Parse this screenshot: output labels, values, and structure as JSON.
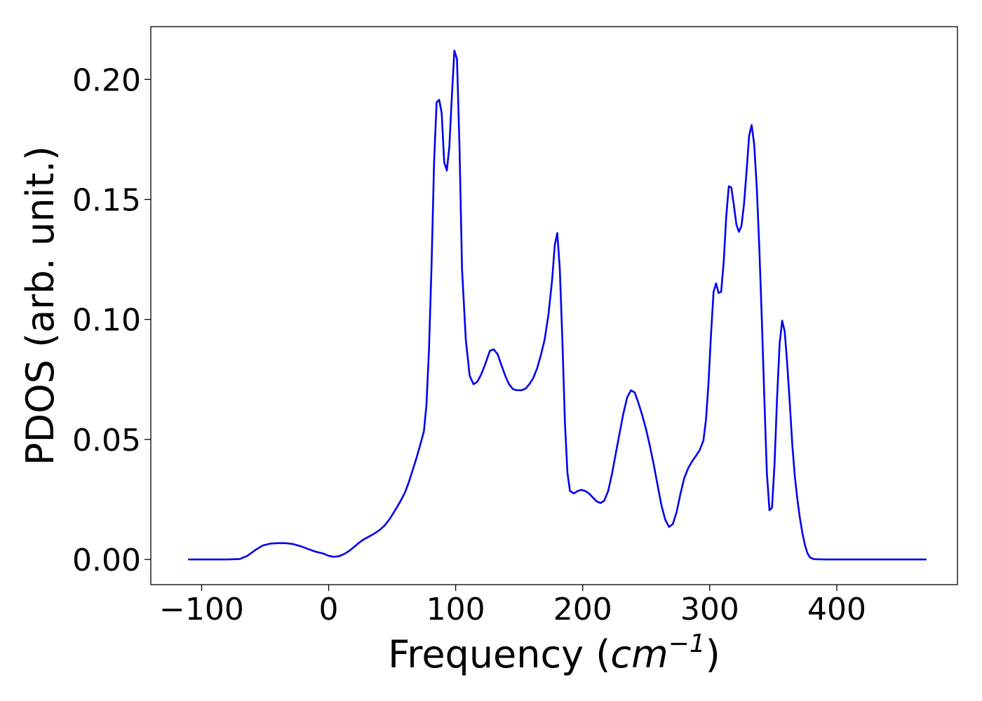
{
  "chart_data": {
    "type": "line",
    "title": "",
    "xlabel": "Frequency (",
    "xlabel_math": "cm",
    "xlabel_sup": "−1",
    "xlabel_close": ")",
    "ylabel": "PDOS (arb. unit.)",
    "xlim": [
      -140,
      495
    ],
    "ylim": [
      -0.0105,
      0.222
    ],
    "x_ticks": [
      -100,
      0,
      100,
      200,
      300,
      400
    ],
    "x_tick_labels": [
      "−100",
      "0",
      "100",
      "200",
      "300",
      "400"
    ],
    "y_ticks": [
      0.0,
      0.05,
      0.1,
      0.15,
      0.2
    ],
    "y_tick_labels": [
      "0.00",
      "0.05",
      "0.10",
      "0.15",
      "0.20"
    ],
    "grid": false,
    "series": [
      {
        "color": "#0000ee",
        "points": [
          [
            -110,
            0.0
          ],
          [
            -80,
            0.0
          ],
          [
            -70,
            0.0002
          ],
          [
            -64,
            0.0015
          ],
          [
            -58,
            0.0038
          ],
          [
            -52,
            0.0058
          ],
          [
            -46,
            0.0066
          ],
          [
            -40,
            0.0068
          ],
          [
            -34,
            0.0068
          ],
          [
            -28,
            0.0064
          ],
          [
            -22,
            0.0055
          ],
          [
            -16,
            0.0043
          ],
          [
            -10,
            0.0032
          ],
          [
            -4,
            0.0024
          ],
          [
            0,
            0.0015
          ],
          [
            4,
            0.0011
          ],
          [
            8,
            0.0013
          ],
          [
            12,
            0.0022
          ],
          [
            16,
            0.0035
          ],
          [
            20,
            0.0052
          ],
          [
            24,
            0.007
          ],
          [
            28,
            0.0085
          ],
          [
            32,
            0.0096
          ],
          [
            36,
            0.0108
          ],
          [
            40,
            0.0122
          ],
          [
            44,
            0.0141
          ],
          [
            48,
            0.0168
          ],
          [
            52,
            0.0202
          ],
          [
            56,
            0.0238
          ],
          [
            60,
            0.0278
          ],
          [
            63,
            0.032
          ],
          [
            66,
            0.037
          ],
          [
            69,
            0.042
          ],
          [
            72,
            0.0475
          ],
          [
            75,
            0.0535
          ],
          [
            77,
            0.0645
          ],
          [
            79,
            0.0875
          ],
          [
            81,
            0.122
          ],
          [
            83,
            0.166
          ],
          [
            85,
            0.1905
          ],
          [
            87,
            0.1915
          ],
          [
            89,
            0.186
          ],
          [
            91,
            0.1655
          ],
          [
            93,
            0.162
          ],
          [
            95,
            0.172
          ],
          [
            97,
            0.193
          ],
          [
            99,
            0.212
          ],
          [
            101,
            0.2085
          ],
          [
            103,
            0.172
          ],
          [
            105,
            0.121
          ],
          [
            108,
            0.0915
          ],
          [
            111,
            0.0765
          ],
          [
            114,
            0.073
          ],
          [
            117,
            0.074
          ],
          [
            120,
            0.077
          ],
          [
            123,
            0.081
          ],
          [
            127,
            0.087
          ],
          [
            130,
            0.0875
          ],
          [
            133,
            0.0855
          ],
          [
            136,
            0.081
          ],
          [
            139,
            0.0765
          ],
          [
            142,
            0.073
          ],
          [
            145,
            0.071
          ],
          [
            148,
            0.0705
          ],
          [
            152,
            0.0705
          ],
          [
            155,
            0.0712
          ],
          [
            158,
            0.073
          ],
          [
            161,
            0.0755
          ],
          [
            164,
            0.0795
          ],
          [
            167,
            0.085
          ],
          [
            170,
            0.0915
          ],
          [
            173,
            0.102
          ],
          [
            176,
            0.117
          ],
          [
            178,
            0.131
          ],
          [
            180,
            0.136
          ],
          [
            182,
            0.121
          ],
          [
            184,
            0.091
          ],
          [
            186,
            0.057
          ],
          [
            188,
            0.036
          ],
          [
            190,
            0.0285
          ],
          [
            193,
            0.0275
          ],
          [
            196,
            0.0285
          ],
          [
            199,
            0.029
          ],
          [
            202,
            0.0285
          ],
          [
            205,
            0.0275
          ],
          [
            208,
            0.0258
          ],
          [
            211,
            0.0242
          ],
          [
            214,
            0.0235
          ],
          [
            217,
            0.0245
          ],
          [
            220,
            0.0285
          ],
          [
            223,
            0.0355
          ],
          [
            226,
            0.044
          ],
          [
            229,
            0.0525
          ],
          [
            232,
            0.0608
          ],
          [
            235,
            0.0675
          ],
          [
            238,
            0.0705
          ],
          [
            241,
            0.0695
          ],
          [
            244,
            0.065
          ],
          [
            247,
            0.0598
          ],
          [
            250,
            0.054
          ],
          [
            253,
            0.047
          ],
          [
            256,
            0.0392
          ],
          [
            259,
            0.0308
          ],
          [
            262,
            0.0225
          ],
          [
            265,
            0.0165
          ],
          [
            268,
            0.0135
          ],
          [
            271,
            0.0148
          ],
          [
            274,
            0.02
          ],
          [
            277,
            0.0275
          ],
          [
            280,
            0.034
          ],
          [
            283,
            0.038
          ],
          [
            286,
            0.0408
          ],
          [
            289,
            0.043
          ],
          [
            292,
            0.0455
          ],
          [
            295,
            0.0495
          ],
          [
            297,
            0.058
          ],
          [
            299,
            0.073
          ],
          [
            301,
            0.094
          ],
          [
            303,
            0.1115
          ],
          [
            305,
            0.115
          ],
          [
            307,
            0.111
          ],
          [
            309,
            0.1115
          ],
          [
            311,
            0.124
          ],
          [
            313,
            0.143
          ],
          [
            315,
            0.1555
          ],
          [
            317,
            0.155
          ],
          [
            319,
            0.1475
          ],
          [
            321,
            0.1395
          ],
          [
            323,
            0.1365
          ],
          [
            325,
            0.139
          ],
          [
            327,
            0.148
          ],
          [
            329,
            0.162
          ],
          [
            331,
            0.1765
          ],
          [
            333,
            0.181
          ],
          [
            335,
            0.173
          ],
          [
            337,
            0.155
          ],
          [
            339,
            0.13
          ],
          [
            341,
            0.1
          ],
          [
            343,
            0.067
          ],
          [
            345,
            0.036
          ],
          [
            347,
            0.0205
          ],
          [
            349,
            0.0215
          ],
          [
            351,
            0.0395
          ],
          [
            353,
            0.067
          ],
          [
            355,
            0.09
          ],
          [
            357,
            0.0995
          ],
          [
            359,
            0.095
          ],
          [
            361,
            0.0815
          ],
          [
            363,
            0.0655
          ],
          [
            365,
            0.0475
          ],
          [
            367,
            0.0345
          ],
          [
            369,
            0.025
          ],
          [
            371,
            0.0172
          ],
          [
            373,
            0.0108
          ],
          [
            375,
            0.0058
          ],
          [
            377,
            0.0025
          ],
          [
            379,
            0.0008
          ],
          [
            382,
            0.0001
          ],
          [
            390,
            0.0
          ],
          [
            470,
            0.0
          ]
        ]
      }
    ]
  }
}
